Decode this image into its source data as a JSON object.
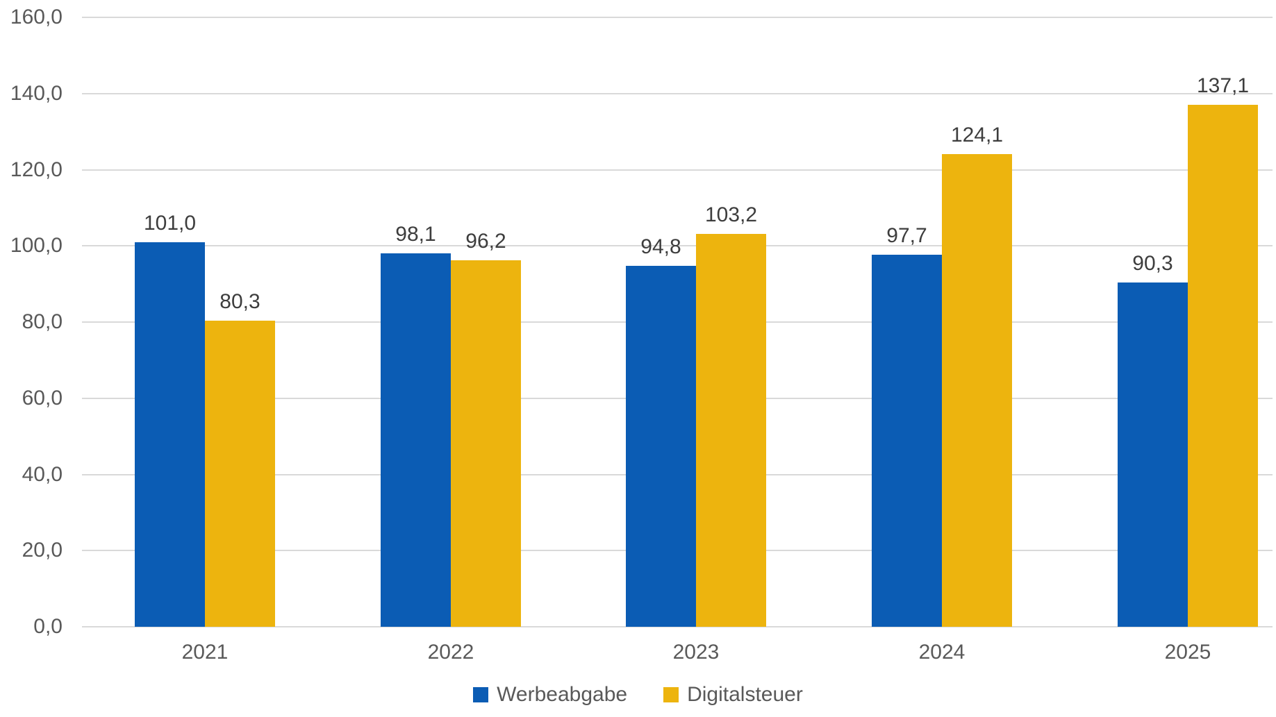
{
  "chart_data": {
    "type": "bar",
    "categories": [
      "2021",
      "2022",
      "2023",
      "2024",
      "2025"
    ],
    "series": [
      {
        "name": "Werbeabgabe",
        "color": "#0b5cb4",
        "values": [
          101.0,
          98.1,
          94.8,
          97.7,
          90.3
        ],
        "labels": [
          "101,0",
          "98,1",
          "94,8",
          "97,7",
          "90,3"
        ]
      },
      {
        "name": "Digitalsteuer",
        "color": "#edb40e",
        "values": [
          80.3,
          96.2,
          103.2,
          124.1,
          137.1
        ],
        "labels": [
          "80,3",
          "96,2",
          "103,2",
          "124,1",
          "137,1"
        ]
      }
    ],
    "title": "",
    "xlabel": "",
    "ylabel": "",
    "ylim": [
      0,
      160
    ],
    "ytick_step": 20,
    "ytick_labels": [
      "0,0",
      "20,0",
      "40,0",
      "60,0",
      "80,0",
      "100,0",
      "120,0",
      "140,0",
      "160,0"
    ],
    "grid": "horizontal",
    "gridline_color": "#d9d9d9",
    "legend_position": "bottom"
  },
  "legend": {
    "items": [
      {
        "label": "Werbeabgabe",
        "color": "#0b5cb4"
      },
      {
        "label": "Digitalsteuer",
        "color": "#edb40e"
      }
    ]
  }
}
